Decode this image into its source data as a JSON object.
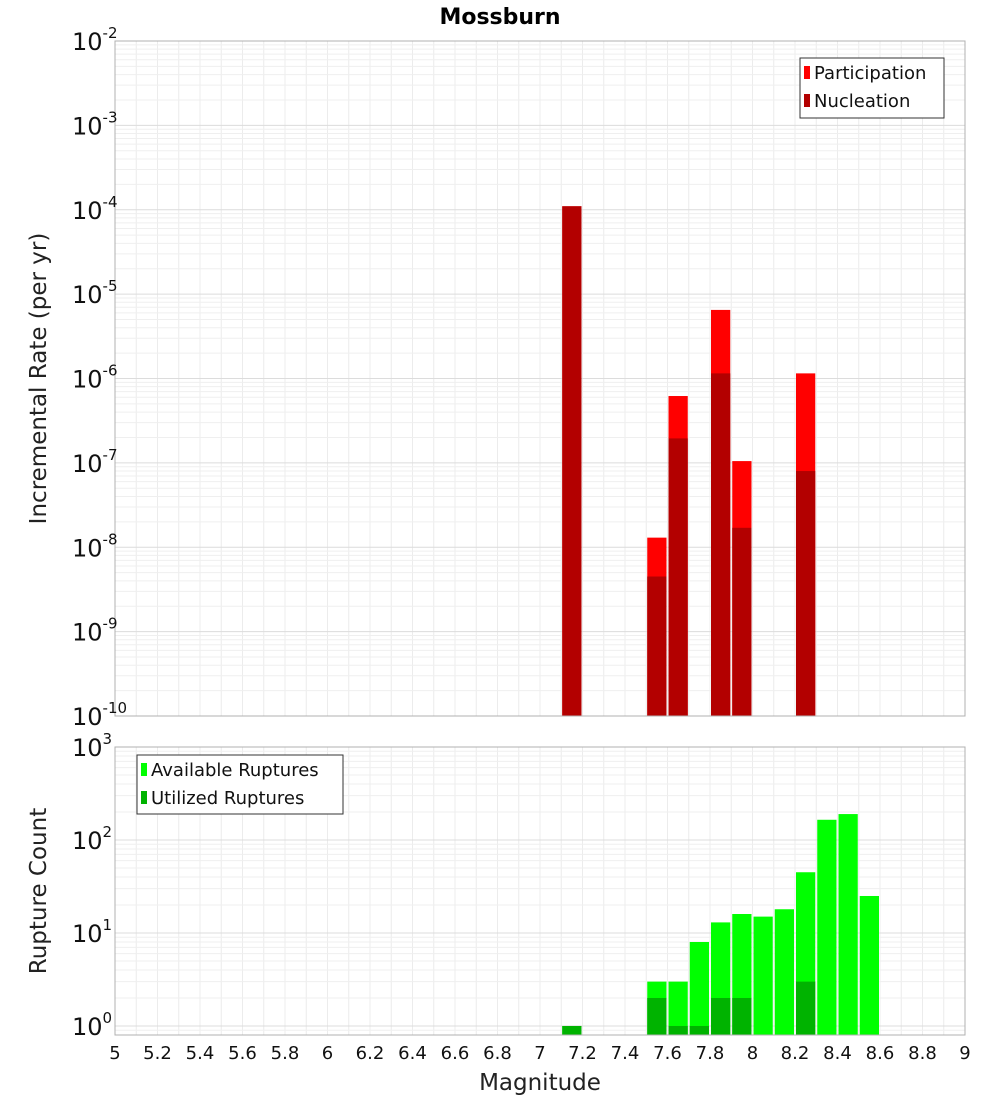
{
  "title": "Mossburn",
  "chart_data": [
    {
      "type": "bar",
      "scale": "log",
      "ylabel": "Incremental Rate (per yr)",
      "xlabel": "",
      "ylim": [
        1e-10,
        0.01
      ],
      "y_ticks": [
        {
          "base": "10",
          "exp": "-10",
          "value": 1e-10
        },
        {
          "base": "10",
          "exp": "-9",
          "value": 1e-09
        },
        {
          "base": "10",
          "exp": "-8",
          "value": 1e-08
        },
        {
          "base": "10",
          "exp": "-7",
          "value": 1e-07
        },
        {
          "base": "10",
          "exp": "-6",
          "value": 1e-06
        },
        {
          "base": "10",
          "exp": "-5",
          "value": 1e-05
        },
        {
          "base": "10",
          "exp": "-4",
          "value": 0.0001
        },
        {
          "base": "10",
          "exp": "-3",
          "value": 0.001
        },
        {
          "base": "10",
          "exp": "-2",
          "value": 0.01
        }
      ],
      "series": [
        {
          "name": "Participation",
          "color": "#ff0000",
          "points": [
            {
              "x": 7.15,
              "y": 0.00011
            },
            {
              "x": 7.55,
              "y": 1.3e-08
            },
            {
              "x": 7.65,
              "y": 6.2e-07
            },
            {
              "x": 7.85,
              "y": 6.5e-06
            },
            {
              "x": 7.95,
              "y": 1.05e-07
            },
            {
              "x": 8.25,
              "y": 1.15e-06
            }
          ]
        },
        {
          "name": "Nucleation",
          "color": "#b30000",
          "points": [
            {
              "x": 7.15,
              "y": 0.00011
            },
            {
              "x": 7.55,
              "y": 4.5e-09
            },
            {
              "x": 7.65,
              "y": 1.95e-07
            },
            {
              "x": 7.85,
              "y": 1.15e-06
            },
            {
              "x": 7.95,
              "y": 1.7e-08
            },
            {
              "x": 8.25,
              "y": 8e-08
            }
          ]
        }
      ],
      "legend": "top-right"
    },
    {
      "type": "bar",
      "scale": "log",
      "ylabel": "Rupture Count",
      "xlabel": "Magnitude",
      "ylim": [
        0.8,
        1000
      ],
      "y_ticks": [
        {
          "base": "10",
          "exp": "0",
          "value": 1
        },
        {
          "base": "10",
          "exp": "1",
          "value": 10
        },
        {
          "base": "10",
          "exp": "2",
          "value": 100
        },
        {
          "base": "10",
          "exp": "3",
          "value": 1000
        }
      ],
      "series": [
        {
          "name": "Available Ruptures",
          "color": "#00ff00",
          "points": [
            {
              "x": 7.15,
              "y": 1
            },
            {
              "x": 7.55,
              "y": 3
            },
            {
              "x": 7.65,
              "y": 3
            },
            {
              "x": 7.75,
              "y": 8
            },
            {
              "x": 7.85,
              "y": 13
            },
            {
              "x": 7.95,
              "y": 16
            },
            {
              "x": 8.05,
              "y": 15
            },
            {
              "x": 8.15,
              "y": 18
            },
            {
              "x": 8.25,
              "y": 45
            },
            {
              "x": 8.35,
              "y": 165
            },
            {
              "x": 8.45,
              "y": 190
            },
            {
              "x": 8.55,
              "y": 25
            }
          ]
        },
        {
          "name": "Utilized Ruptures",
          "color": "#00b300",
          "points": [
            {
              "x": 7.15,
              "y": 1
            },
            {
              "x": 7.55,
              "y": 2
            },
            {
              "x": 7.65,
              "y": 1
            },
            {
              "x": 7.75,
              "y": 1
            },
            {
              "x": 7.85,
              "y": 2
            },
            {
              "x": 7.95,
              "y": 2
            },
            {
              "x": 8.25,
              "y": 3
            }
          ]
        }
      ],
      "legend": "top-left"
    }
  ],
  "x_axis": {
    "min": 5,
    "max": 9,
    "bin_width": 0.1,
    "tick_labels": [
      "5",
      "5.2",
      "5.4",
      "5.6",
      "5.8",
      "6",
      "6.2",
      "6.4",
      "6.6",
      "6.8",
      "7",
      "7.2",
      "7.4",
      "7.6",
      "7.8",
      "8",
      "8.2",
      "8.4",
      "8.6",
      "8.8",
      "9"
    ]
  }
}
